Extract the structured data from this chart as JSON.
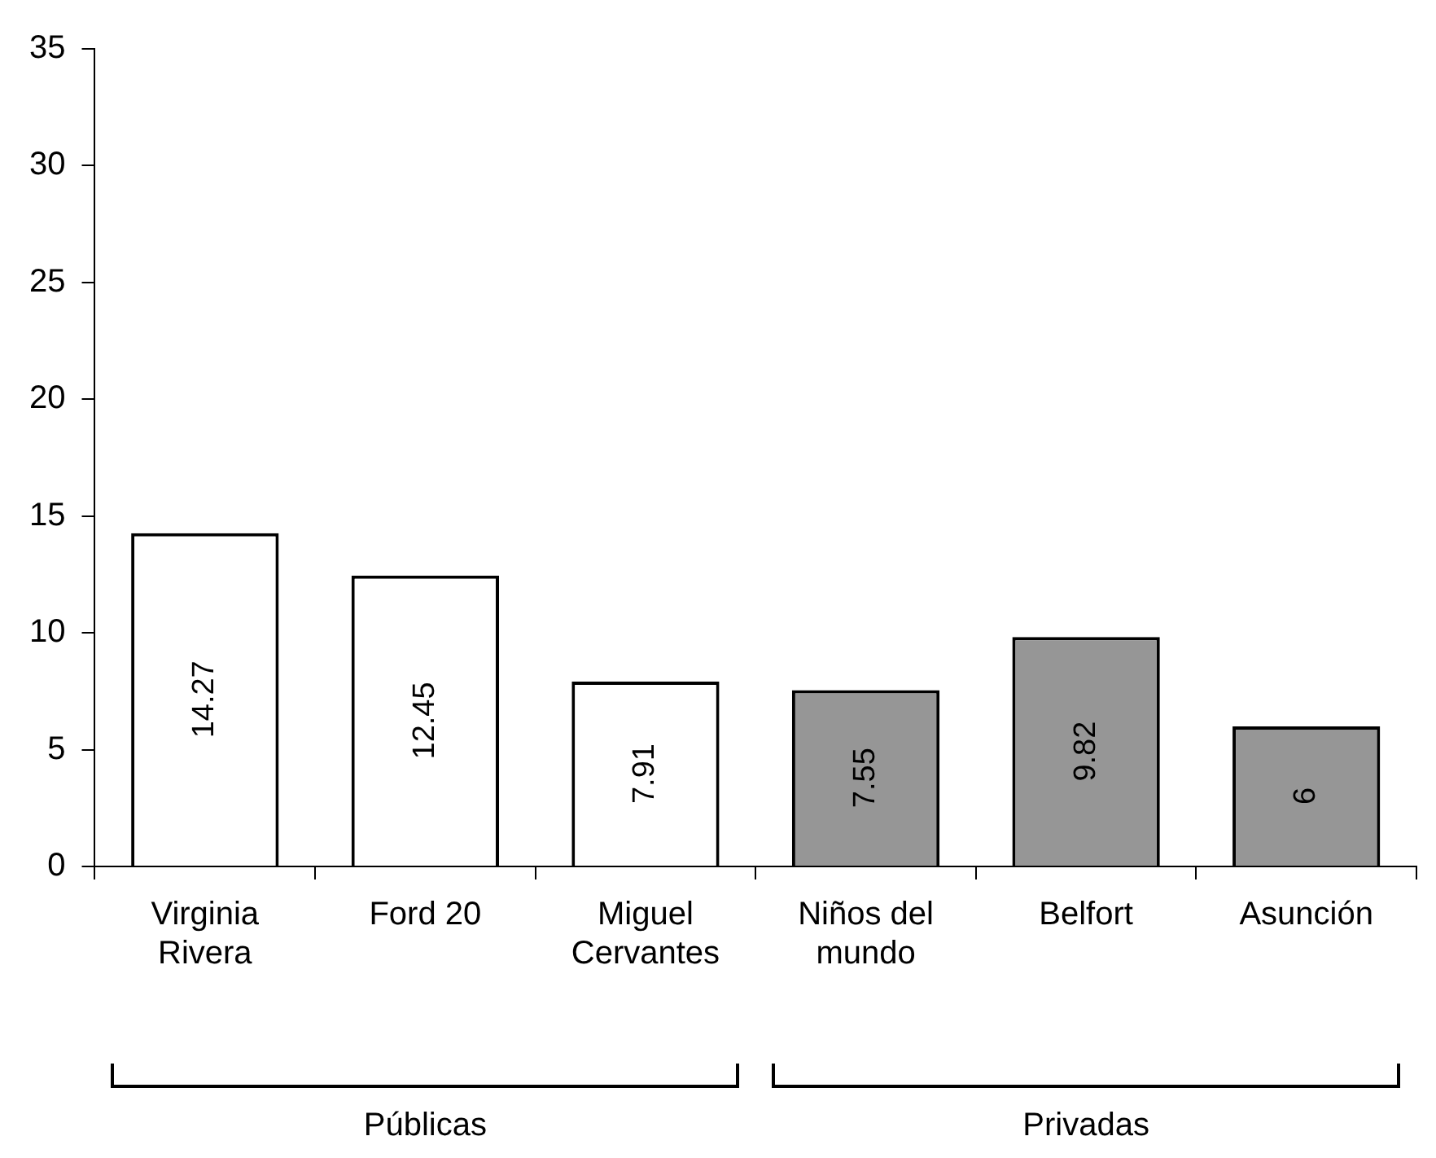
{
  "chart_data": {
    "type": "bar",
    "categories": [
      "Virginia Rivera",
      "Ford 20",
      "Miguel Cervantes",
      "Niños del mundo",
      "Belfort",
      "Asunción"
    ],
    "values": [
      14.27,
      12.45,
      7.91,
      7.55,
      9.82,
      6
    ],
    "colors": [
      "#ffffff",
      "#ffffff",
      "#ffffff",
      "#969696",
      "#969696",
      "#969696"
    ],
    "ylim": [
      0,
      35
    ],
    "yticks": [
      0,
      5,
      10,
      15,
      20,
      25,
      30,
      35
    ],
    "grid": false,
    "legend": false,
    "data_labels": true,
    "annotations": [
      "Públicas",
      "Privadas"
    ]
  }
}
